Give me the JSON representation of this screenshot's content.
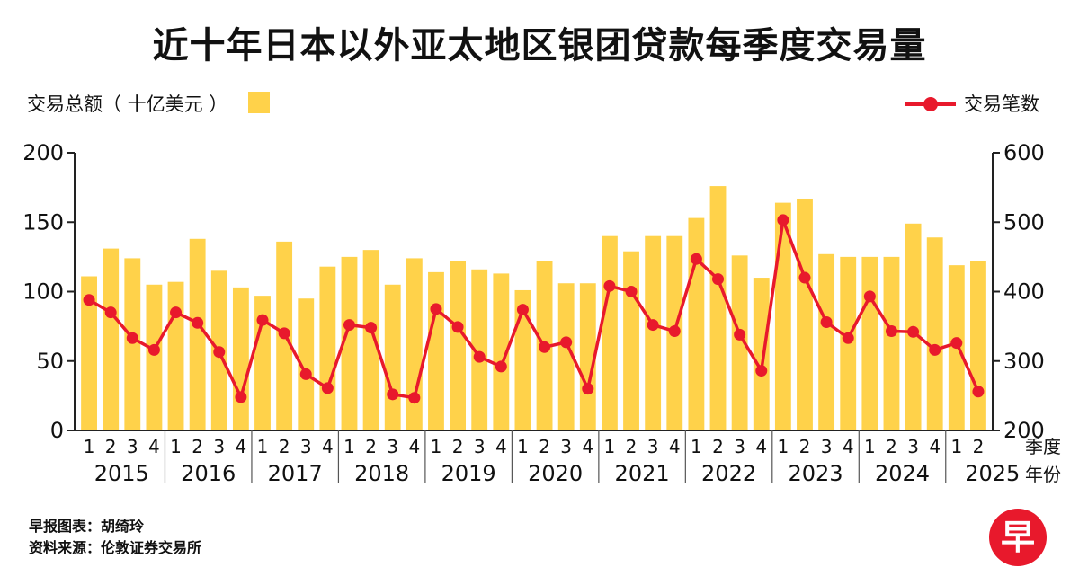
{
  "title": "近十年日本以外亚太地区银团贷款每季度交易量",
  "legend": {
    "bar_label": "交易总额（ 十亿美元 ）",
    "line_label": "交易笔数"
  },
  "axis": {
    "quarter_unit": "季度",
    "year_unit": "年份"
  },
  "credits": {
    "line1": "早报图表：胡绮玲",
    "line2": "资料来源：伦敦证券交易所"
  },
  "logo_text": "早",
  "colors": {
    "bar": "#ffd24a",
    "line": "#e8192c",
    "axis": "#222222"
  },
  "chart_data": {
    "type": "bar",
    "years": [
      "2015",
      "2016",
      "2017",
      "2018",
      "2019",
      "2020",
      "2021",
      "2022",
      "2023",
      "2024",
      "2025"
    ],
    "quarter_labels": [
      "1",
      "2",
      "3",
      "4"
    ],
    "categories": [
      "2015Q1",
      "2015Q2",
      "2015Q3",
      "2015Q4",
      "2016Q1",
      "2016Q2",
      "2016Q3",
      "2016Q4",
      "2017Q1",
      "2017Q2",
      "2017Q3",
      "2017Q4",
      "2018Q1",
      "2018Q2",
      "2018Q3",
      "2018Q4",
      "2019Q1",
      "2019Q2",
      "2019Q3",
      "2019Q4",
      "2020Q1",
      "2020Q2",
      "2020Q3",
      "2020Q4",
      "2021Q1",
      "2021Q2",
      "2021Q3",
      "2021Q4",
      "2022Q1",
      "2022Q2",
      "2022Q3",
      "2022Q4",
      "2023Q1",
      "2023Q2",
      "2023Q3",
      "2023Q4",
      "2024Q1",
      "2024Q2",
      "2024Q3",
      "2024Q4",
      "2025Q1",
      "2025Q2"
    ],
    "series": [
      {
        "name": "交易总额（ 十亿美元 ）",
        "type": "bar",
        "axis": "left",
        "values": [
          111,
          131,
          124,
          105,
          107,
          138,
          115,
          103,
          97,
          136,
          95,
          118,
          125,
          130,
          105,
          124,
          114,
          122,
          116,
          113,
          101,
          122,
          106,
          106,
          140,
          129,
          140,
          140,
          153,
          176,
          126,
          110,
          164,
          167,
          127,
          125,
          125,
          125,
          149,
          139,
          119,
          122
        ]
      },
      {
        "name": "交易笔数",
        "type": "line",
        "axis": "right",
        "values": [
          388,
          370,
          333,
          316,
          370,
          355,
          313,
          248,
          359,
          340,
          281,
          261,
          352,
          348,
          252,
          247,
          375,
          349,
          306,
          292,
          374,
          320,
          327,
          260,
          408,
          400,
          352,
          343,
          447,
          418,
          338,
          286,
          503,
          420,
          356,
          333,
          393,
          343,
          342,
          316,
          326,
          256
        ]
      }
    ],
    "ylim_left": [
      0,
      200
    ],
    "yticks_left": [
      0,
      50,
      100,
      150,
      200
    ],
    "ylim_right": [
      200,
      600
    ],
    "yticks_right": [
      200,
      300,
      400,
      500,
      600
    ],
    "legend_position": "top",
    "grid": false
  }
}
